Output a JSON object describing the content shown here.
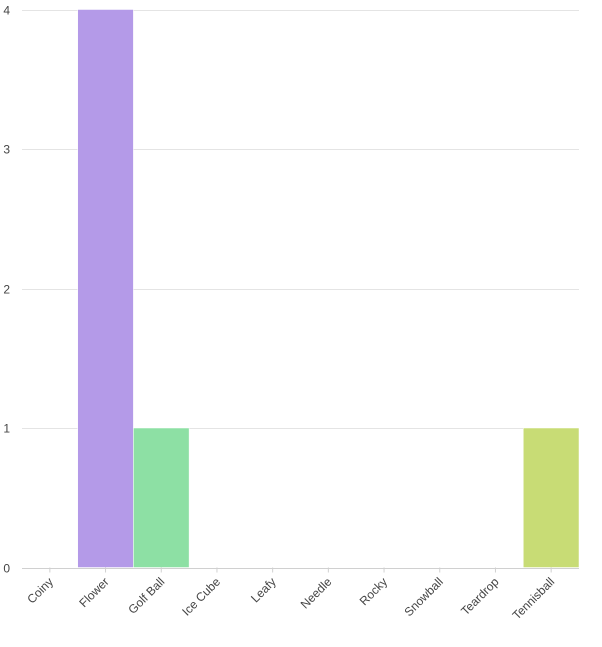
{
  "chart_data": {
    "type": "bar",
    "categories": [
      "Coiny",
      "Flower",
      "Golf Ball",
      "Ice Cube",
      "Leafy",
      "Needle",
      "Rocky",
      "Snowball",
      "Teardrop",
      "Tennisball"
    ],
    "values": [
      0,
      4,
      1,
      0,
      0,
      0,
      0,
      0,
      0,
      1
    ],
    "colors": [
      "#b49ae8",
      "#b49ae8",
      "#8de0a4",
      "#8de0a4",
      "#8de0a4",
      "#8de0a4",
      "#8de0a4",
      "#8de0a4",
      "#8de0a4",
      "#c8dc75"
    ],
    "yticks": [
      0,
      1,
      2,
      3,
      4
    ],
    "ylim": [
      0,
      4
    ],
    "title": "",
    "xlabel": "",
    "ylabel": "",
    "grid": true,
    "legend": "none"
  }
}
